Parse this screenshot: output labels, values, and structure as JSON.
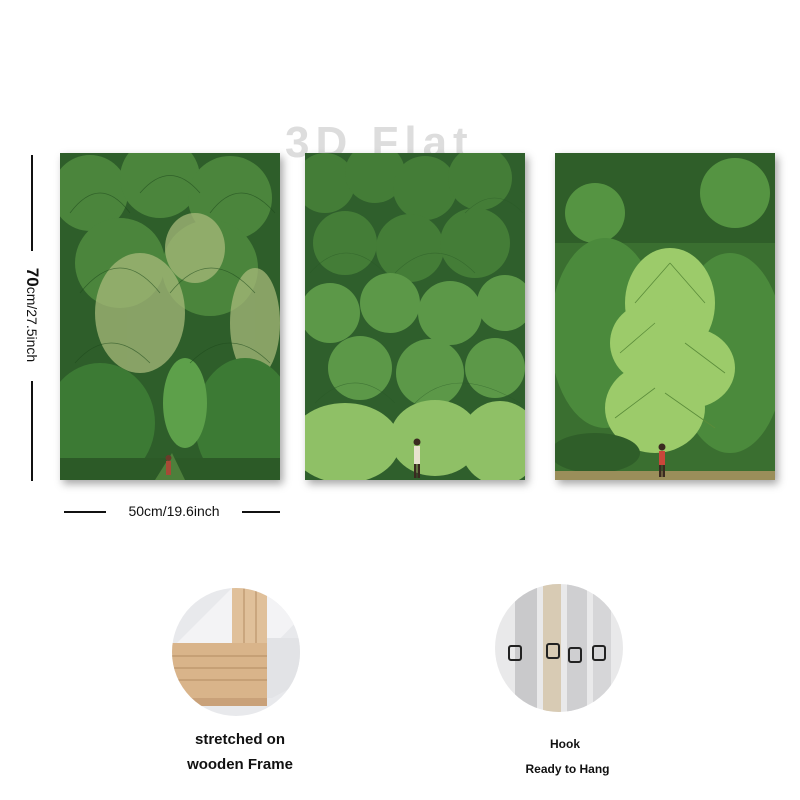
{
  "watermark": {
    "text": "3D Flat"
  },
  "dimensions": {
    "width_label": "50cm/19.6inch",
    "height_number": "70",
    "height_rest": "cm/27.5inch"
  },
  "panels": [
    {
      "name": "forest-panel-left"
    },
    {
      "name": "forest-panel-middle"
    },
    {
      "name": "forest-panel-right"
    }
  ],
  "features": {
    "frame": {
      "line1": "stretched on",
      "line2": "wooden Frame"
    },
    "hook": {
      "line1": "Hook",
      "line2": "Ready to Hang"
    }
  },
  "colors": {
    "dark_green": "#2f6a2c",
    "mid_green": "#4f8f3b",
    "light_green": "#9ccb6a",
    "wood": "#d9b48a"
  }
}
